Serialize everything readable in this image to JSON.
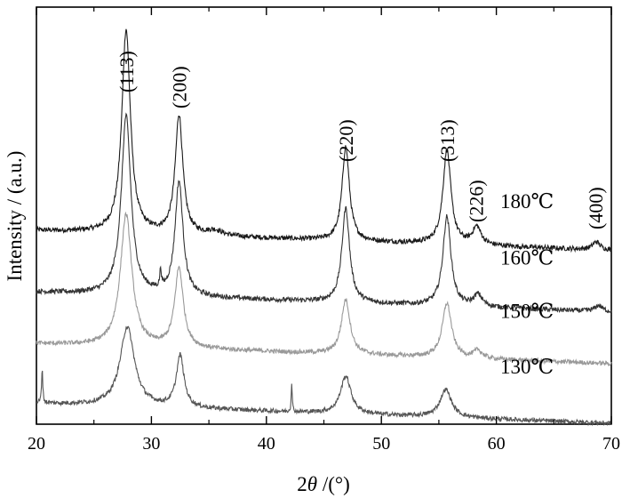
{
  "chart_data": {
    "type": "line",
    "xlabel_prefix": "2",
    "xlabel_symbol": "θ",
    "xlabel_suffix": " /(°)",
    "ylabel": "Intensity / (a.u.)",
    "xlim": [
      20,
      70
    ],
    "x_ticks": [
      "20",
      "30",
      "40",
      "50",
      "60",
      "70"
    ],
    "grid": false,
    "y_ticks_labeled": false,
    "peak_labels": [
      {
        "text": "(113)",
        "x": 27.8
      },
      {
        "text": "(200)",
        "x": 32.4
      },
      {
        "text": "(220)",
        "x": 46.9
      },
      {
        "text": "(313)",
        "x": 55.7
      },
      {
        "text": "(226)",
        "x": 58.2
      },
      {
        "text": "(400)",
        "x": 68.6
      }
    ],
    "series": [
      {
        "name": "180℃",
        "color": "#1a1a1a",
        "baseline": 1.95,
        "noise": 0.05,
        "peaks": [
          {
            "x": 27.8,
            "h": 2.05,
            "w": 0.45
          },
          {
            "x": 32.4,
            "h": 1.2,
            "w": 0.4
          },
          {
            "x": 35.5,
            "h": 0.05,
            "w": 0.8
          },
          {
            "x": 46.9,
            "h": 0.95,
            "w": 0.38
          },
          {
            "x": 55.7,
            "h": 0.95,
            "w": 0.42
          },
          {
            "x": 58.3,
            "h": 0.18,
            "w": 0.45
          },
          {
            "x": 68.7,
            "h": 0.08,
            "w": 0.4
          }
        ]
      },
      {
        "name": "160℃",
        "color": "#333333",
        "baseline": 1.33,
        "noise": 0.05,
        "peaks": [
          {
            "x": 27.8,
            "h": 1.8,
            "w": 0.5
          },
          {
            "x": 30.8,
            "h": 0.18,
            "w": 0.08
          },
          {
            "x": 32.4,
            "h": 1.15,
            "w": 0.42
          },
          {
            "x": 46.9,
            "h": 0.95,
            "w": 0.4
          },
          {
            "x": 55.7,
            "h": 0.9,
            "w": 0.42
          },
          {
            "x": 58.4,
            "h": 0.12,
            "w": 0.45
          },
          {
            "x": 68.9,
            "h": 0.06,
            "w": 0.4
          }
        ]
      },
      {
        "name": "150℃",
        "color": "#999999",
        "baseline": 0.81,
        "noise": 0.045,
        "peaks": [
          {
            "x": 27.8,
            "h": 1.33,
            "w": 0.6
          },
          {
            "x": 32.4,
            "h": 0.8,
            "w": 0.45
          },
          {
            "x": 46.9,
            "h": 0.55,
            "w": 0.45
          },
          {
            "x": 55.7,
            "h": 0.55,
            "w": 0.48
          },
          {
            "x": 58.4,
            "h": 0.08,
            "w": 0.45
          }
        ]
      },
      {
        "name": "130℃",
        "color": "#555555",
        "baseline": 0.21,
        "noise": 0.045,
        "peaks": [
          {
            "x": 20.5,
            "h": 0.35,
            "w": 0.06
          },
          {
            "x": 27.9,
            "h": 0.8,
            "w": 0.75
          },
          {
            "x": 32.5,
            "h": 0.52,
            "w": 0.4
          },
          {
            "x": 42.2,
            "h": 0.3,
            "w": 0.05
          },
          {
            "x": 46.9,
            "h": 0.38,
            "w": 0.55
          },
          {
            "x": 55.6,
            "h": 0.28,
            "w": 0.6
          }
        ]
      }
    ],
    "temp_labels": [
      {
        "text": "180℃",
        "y": 2.25
      },
      {
        "text": "160℃",
        "y": 1.68
      },
      {
        "text": "150℃",
        "y": 1.14
      },
      {
        "text": "130℃",
        "y": 0.58
      }
    ]
  }
}
